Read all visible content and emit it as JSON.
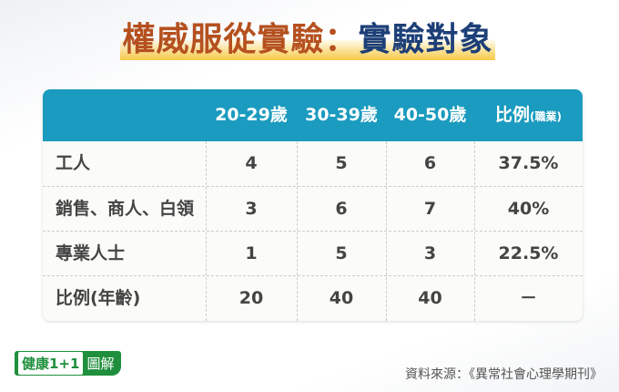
{
  "title": {
    "part1": "權威服從實驗",
    "colon": "：",
    "part2": "實驗對象"
  },
  "table": {
    "headers": [
      "",
      "20-29歲",
      "30-39歲",
      "40-50歲",
      "比例"
    ],
    "header_suffix": "(職業)",
    "rows": [
      [
        "工人",
        "4",
        "5",
        "6",
        "37.5%"
      ],
      [
        "銷售、商人、白領",
        "3",
        "6",
        "7",
        "40%"
      ],
      [
        "專業人士",
        "1",
        "5",
        "3",
        "22.5%"
      ],
      [
        "比例(年齡)",
        "20",
        "40",
        "40",
        "－"
      ]
    ]
  },
  "logo": {
    "text_a": "健康1+1",
    "text_b": "圖解"
  },
  "source": "資料來源：《異常社會心理學期刊》",
  "colors": {
    "header": "#1a9bbf",
    "title_orange": "#b5501f",
    "title_blue": "#1d3f78",
    "logo_green": "#1f8f3d"
  }
}
